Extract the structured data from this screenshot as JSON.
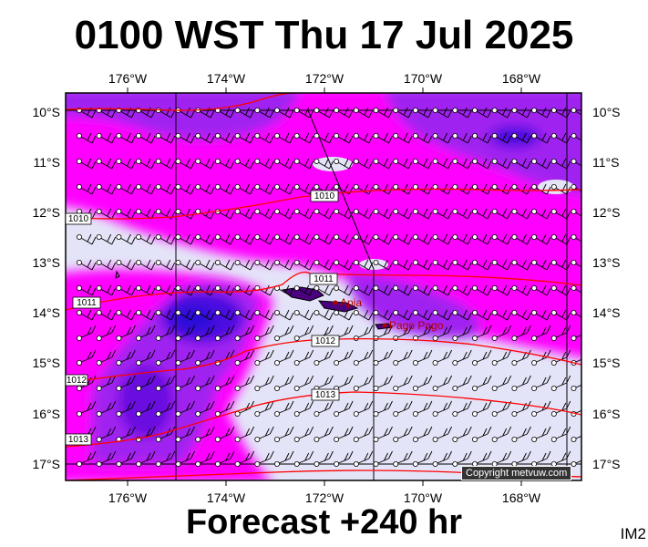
{
  "title": "0100 WST Thu 17 Jul 2025",
  "footer": "Forecast +240 hr",
  "image_code": "IM2",
  "copyright": "Copyright metvuw.com",
  "lon_labels": [
    "176°W",
    "174°W",
    "172°W",
    "170°W",
    "168°W"
  ],
  "lat_labels": [
    "10°S",
    "11°S",
    "12°S",
    "13°S",
    "14°S",
    "15°S",
    "16°S",
    "17°S"
  ],
  "places": [
    "Apia",
    "Pago Pago"
  ],
  "isobar_labels": [
    "1010",
    "1010",
    "1011",
    "1011",
    "1012",
    "1012",
    "1013",
    "1013"
  ],
  "colors": {
    "rain_light": "#e4e4f8",
    "rain_medium": "#ff00ff",
    "rain_heavy": "#a020f0",
    "rain_very_heavy": "#6a0fe0",
    "rain_extreme": "#2a0ad8",
    "isobar": "#ff0000",
    "place": "#b00000"
  }
}
